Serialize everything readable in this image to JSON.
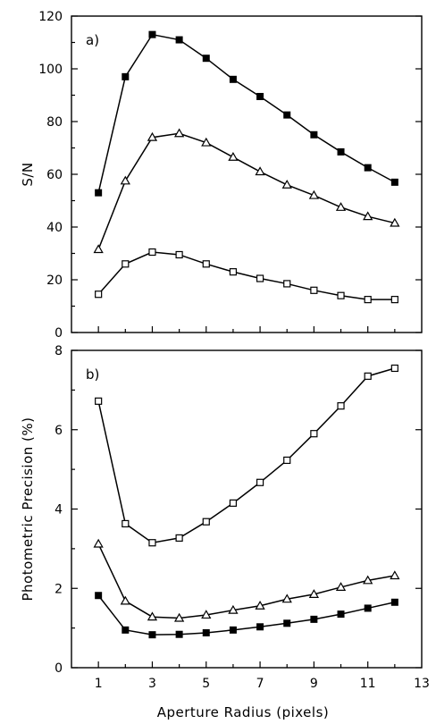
{
  "chart_data": [
    {
      "type": "line",
      "panel_label": "a)",
      "xlabel": "",
      "ylabel": "S/N",
      "xlim": [
        0,
        13
      ],
      "ylim": [
        0,
        120
      ],
      "xticks": [
        1,
        3,
        5,
        7,
        9,
        11,
        13
      ],
      "yticks": [
        0,
        20,
        40,
        60,
        80,
        100,
        120
      ],
      "x": [
        1,
        2,
        3,
        4,
        5,
        6,
        7,
        8,
        9,
        10,
        11,
        12
      ],
      "series": [
        {
          "marker": "filled-square",
          "values": [
            53,
            97,
            113,
            111,
            104,
            96,
            89.5,
            82.5,
            75,
            68.5,
            62.5,
            57
          ]
        },
        {
          "marker": "open-triangle",
          "values": [
            31.5,
            57.5,
            74,
            75.5,
            72,
            66.5,
            61,
            56,
            52,
            47.5,
            44,
            41.5
          ]
        },
        {
          "marker": "open-square",
          "values": [
            14.5,
            26,
            30.5,
            29.5,
            26,
            23,
            20.5,
            18.5,
            16,
            14,
            12.5,
            12.5
          ]
        }
      ]
    },
    {
      "type": "line",
      "panel_label": "b)",
      "xlabel": "Aperture Radius (pixels)",
      "ylabel": "Photometric Precision (%)",
      "xlim": [
        0,
        13
      ],
      "ylim": [
        0,
        8
      ],
      "xticks": [
        1,
        3,
        5,
        7,
        9,
        11,
        13
      ],
      "yticks": [
        0,
        2,
        4,
        6,
        8
      ],
      "x": [
        1,
        2,
        3,
        4,
        5,
        6,
        7,
        8,
        9,
        10,
        11,
        12
      ],
      "series": [
        {
          "marker": "open-square",
          "values": [
            6.72,
            3.63,
            3.15,
            3.27,
            3.68,
            4.15,
            4.67,
            5.23,
            5.9,
            6.6,
            7.35,
            7.55
          ]
        },
        {
          "marker": "open-triangle",
          "values": [
            3.12,
            1.68,
            1.28,
            1.25,
            1.33,
            1.45,
            1.56,
            1.73,
            1.85,
            2.03,
            2.2,
            2.32
          ]
        },
        {
          "marker": "filled-square",
          "values": [
            1.82,
            0.95,
            0.83,
            0.84,
            0.88,
            0.95,
            1.03,
            1.12,
            1.22,
            1.35,
            1.5,
            1.65
          ]
        }
      ]
    }
  ]
}
